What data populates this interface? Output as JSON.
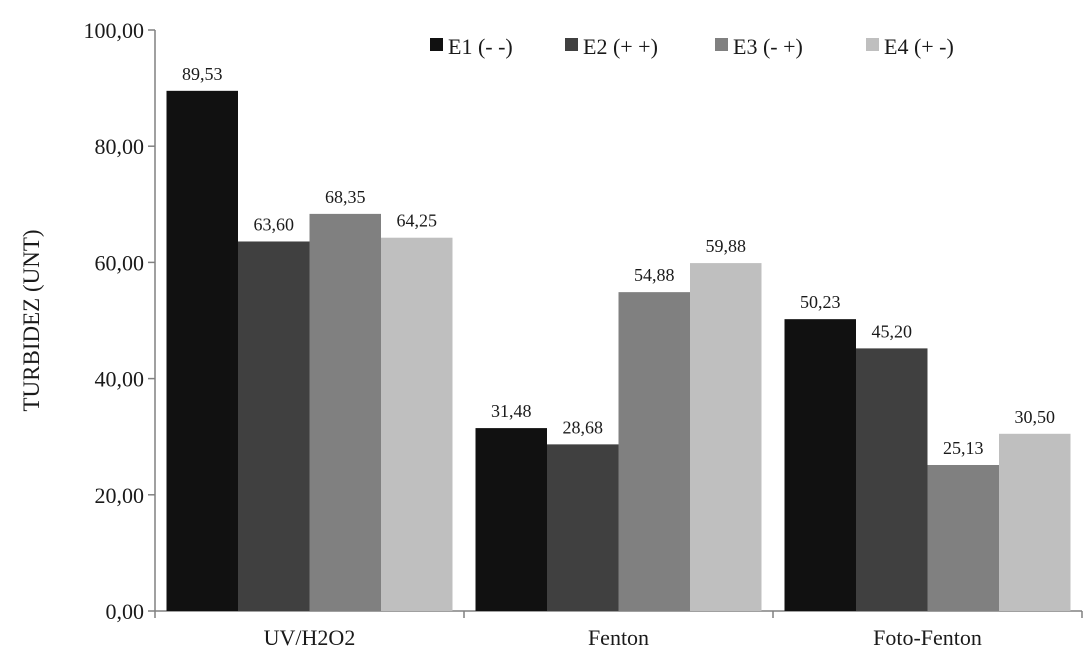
{
  "chart_data": {
    "type": "bar",
    "title": "",
    "xlabel": "",
    "ylabel": "TURBIDEZ (UNT)",
    "ylim": [
      0,
      100
    ],
    "yticks": [
      "0,00",
      "20,00",
      "40,00",
      "60,00",
      "80,00",
      "100,00"
    ],
    "ytick_values": [
      0,
      20,
      40,
      60,
      80,
      100
    ],
    "categories": [
      "UV/H2O2",
      "Fenton",
      "Foto-Fenton"
    ],
    "grid": false,
    "legend_position": "top-right",
    "series": [
      {
        "name": "E1 (- -)",
        "color": "#111111",
        "values": [
          89.53,
          31.48,
          50.23
        ],
        "labels": [
          "89,53",
          "31,48",
          "50,23"
        ]
      },
      {
        "name": "E2 (+ +)",
        "color": "#404040",
        "values": [
          63.6,
          28.68,
          45.2
        ],
        "labels": [
          "63,60",
          "28,68",
          "45,20"
        ]
      },
      {
        "name": "E3 (- +)",
        "color": "#808080",
        "values": [
          68.35,
          54.88,
          25.13
        ],
        "labels": [
          "68,35",
          "54,88",
          "25,13"
        ]
      },
      {
        "name": "E4 (+ -)",
        "color": "#bfbfbf",
        "values": [
          64.25,
          59.88,
          30.5
        ],
        "labels": [
          "64,25",
          "59,88",
          "30,50"
        ]
      }
    ]
  }
}
